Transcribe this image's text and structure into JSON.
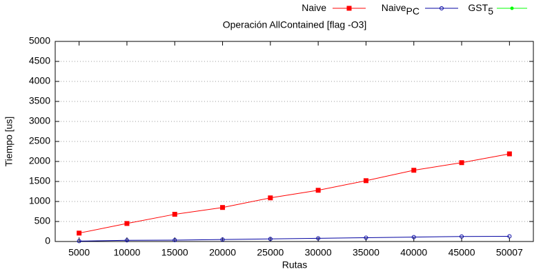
{
  "chart_data": {
    "type": "line",
    "title": "Operación AllContained [flag -O3]",
    "x_label": "Rutas",
    "y_label": "Tiempo [us]",
    "categories": [
      "5000",
      "10000",
      "15000",
      "20000",
      "25000",
      "30000",
      "35000",
      "40000",
      "45000",
      "50007"
    ],
    "series": [
      {
        "name": "Naive",
        "color": "#ff0000",
        "marker": "square",
        "values": [
          210,
          450,
          680,
          850,
          1090,
          1280,
          1520,
          1780,
          1970,
          2190
        ]
      },
      {
        "name": "Naive",
        "name_subscript": "PC",
        "color": "#0000a0",
        "marker": "open-circle",
        "values": [
          10,
          30,
          35,
          50,
          65,
          80,
          95,
          110,
          125,
          130
        ]
      },
      {
        "name": "GST",
        "name_subscript": "5",
        "color": "#00ff00",
        "marker": "circle",
        "values": [
          null,
          null,
          null,
          null,
          null,
          null,
          null,
          null,
          null,
          null
        ]
      }
    ],
    "ylim": [
      0,
      5000
    ],
    "yticks": [
      0,
      500,
      1000,
      1500,
      2000,
      2500,
      3000,
      3500,
      4000,
      4500,
      5000
    ],
    "grid": true,
    "legend": "top"
  }
}
